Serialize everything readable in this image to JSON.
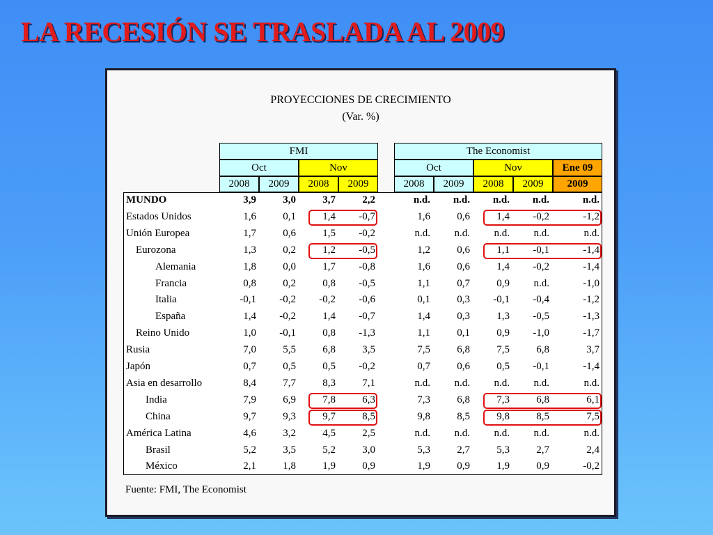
{
  "slide": {
    "title": "LA RECESIÓN SE TRASLADA AL 2009"
  },
  "table": {
    "title": "PROYECCIONES DE CRECIMIENTO",
    "subtitle": "(Var. %)",
    "source": "Fuente: FMI, The Economist",
    "groups": {
      "fmi": "FMI",
      "economist": "The Economist"
    },
    "periods": {
      "fmi_oct": "Oct",
      "fmi_nov": "Nov",
      "eco_oct": "Oct",
      "eco_nov": "Nov",
      "eco_ene": "Ene 09"
    },
    "years": [
      "2008",
      "2009",
      "2008",
      "2009",
      "2008",
      "2009",
      "2008",
      "2009",
      "2009"
    ],
    "colors": {
      "header_cyan": "#ccffff",
      "header_yellow": "#ffff00",
      "header_orange": "#ffa500",
      "highlight_red": "#e01010",
      "title_red": "#e01c1c"
    },
    "rows": [
      {
        "label": "MUNDO",
        "bold": true,
        "indent": 0,
        "values": [
          "3,9",
          "3,0",
          "3,7",
          "2,2",
          "n.d.",
          "n.d.",
          "n.d.",
          "n.d.",
          "n.d."
        ]
      },
      {
        "label": "Estados Unidos",
        "indent": 0,
        "values": [
          "1,6",
          "0,1",
          "1,4",
          "-0,7",
          "1,6",
          "0,6",
          "1,4",
          "-0,2",
          "-1,2"
        ]
      },
      {
        "label": "Unión Europea",
        "indent": 0,
        "values": [
          "1,7",
          "0,6",
          "1,5",
          "-0,2",
          "n.d.",
          "n.d.",
          "n.d.",
          "n.d.",
          "n.d."
        ]
      },
      {
        "label": "Eurozona",
        "indent": 1,
        "values": [
          "1,3",
          "0,2",
          "1,2",
          "-0,5",
          "1,2",
          "0,6",
          "1,1",
          "-0,1",
          "-1,4"
        ]
      },
      {
        "label": "Alemania",
        "indent": 3,
        "values": [
          "1,8",
          "0,0",
          "1,7",
          "-0,8",
          "1,6",
          "0,6",
          "1,4",
          "-0,2",
          "-1,4"
        ]
      },
      {
        "label": "Francia",
        "indent": 3,
        "values": [
          "0,8",
          "0,2",
          "0,8",
          "-0,5",
          "1,1",
          "0,7",
          "0,9",
          "n.d.",
          "-1,0"
        ]
      },
      {
        "label": "Italia",
        "indent": 3,
        "values": [
          "-0,1",
          "-0,2",
          "-0,2",
          "-0,6",
          "0,1",
          "0,3",
          "-0,1",
          "-0,4",
          "-1,2"
        ]
      },
      {
        "label": "España",
        "indent": 3,
        "values": [
          "1,4",
          "-0,2",
          "1,4",
          "-0,7",
          "1,4",
          "0,3",
          "1,3",
          "-0,5",
          "-1,3"
        ]
      },
      {
        "label": "Reino Unido",
        "indent": 1,
        "values": [
          "1,0",
          "-0,1",
          "0,8",
          "-1,3",
          "1,1",
          "0,1",
          "0,9",
          "-1,0",
          "-1,7"
        ]
      },
      {
        "label": "Rusia",
        "indent": 0,
        "values": [
          "7,0",
          "5,5",
          "6,8",
          "3,5",
          "7,5",
          "6,8",
          "7,5",
          "6,8",
          "3,7"
        ]
      },
      {
        "label": "Japón",
        "indent": 0,
        "values": [
          "0,7",
          "0,5",
          "0,5",
          "-0,2",
          "0,7",
          "0,6",
          "0,5",
          "-0,1",
          "-1,4"
        ]
      },
      {
        "label": "Asia en desarrollo",
        "indent": 0,
        "values": [
          "8,4",
          "7,7",
          "8,3",
          "7,1",
          "n.d.",
          "n.d.",
          "n.d.",
          "n.d.",
          "n.d."
        ]
      },
      {
        "label": "India",
        "indent": 2,
        "values": [
          "7,9",
          "6,9",
          "7,8",
          "6,3",
          "7,3",
          "6,8",
          "7,3",
          "6,8",
          "6,1"
        ]
      },
      {
        "label": "China",
        "indent": 2,
        "values": [
          "9,7",
          "9,3",
          "9,7",
          "8,5",
          "9,8",
          "8,5",
          "9,8",
          "8,5",
          "7,5"
        ]
      },
      {
        "label": "América Latina",
        "indent": 0,
        "values": [
          "4,6",
          "3,2",
          "4,5",
          "2,5",
          "n.d.",
          "n.d.",
          "n.d.",
          "n.d.",
          "n.d."
        ]
      },
      {
        "label": "Brasil",
        "indent": 2,
        "values": [
          "5,2",
          "3,5",
          "5,2",
          "3,0",
          "5,3",
          "2,7",
          "5,3",
          "2,7",
          "2,4"
        ]
      },
      {
        "label": "México",
        "indent": 2,
        "values": [
          "2,1",
          "1,8",
          "1,9",
          "0,9",
          "1,9",
          "0,9",
          "1,9",
          "0,9",
          "-0,2"
        ]
      }
    ],
    "highlights": [
      {
        "row": 1,
        "from_col": 2,
        "to_col": 3
      },
      {
        "row": 3,
        "from_col": 2,
        "to_col": 3
      },
      {
        "row": 12,
        "from_col": 2,
        "to_col": 3
      },
      {
        "row": 13,
        "from_col": 2,
        "to_col": 3
      },
      {
        "row": 1,
        "from_col": 6,
        "to_col": 8
      },
      {
        "row": 3,
        "from_col": 6,
        "to_col": 8
      },
      {
        "row": 12,
        "from_col": 6,
        "to_col": 8
      },
      {
        "row": 13,
        "from_col": 6,
        "to_col": 8
      }
    ]
  }
}
